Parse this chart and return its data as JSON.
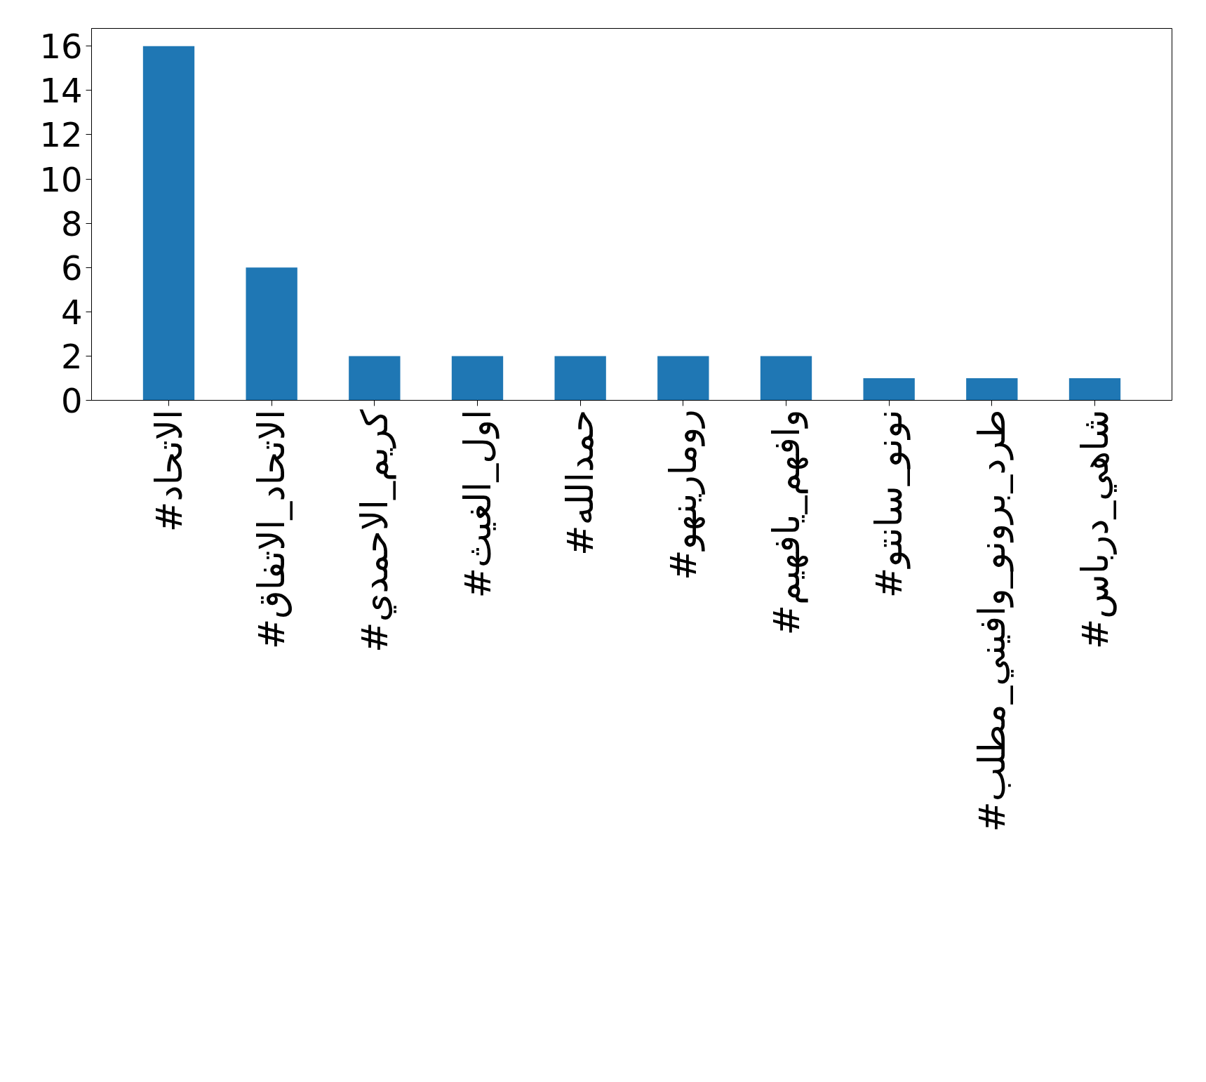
{
  "chart_data": {
    "type": "bar",
    "categories": [
      "#الاتحاد",
      "#الاتحاد_الاتفاق",
      "#كريم_الاحمدي",
      "#اول_الغيث",
      "#حمدالله",
      "#رومارينهو",
      "#وافهم_يافهيم",
      "#نونو_سانتو",
      "#طرد_برونو_وافيني_مطلب",
      "#شاهي_درباس"
    ],
    "values": [
      16,
      6,
      2,
      2,
      2,
      2,
      2,
      1,
      1,
      1
    ],
    "color": "#1f77b4",
    "ylim": [
      0,
      16.8
    ],
    "yticks": [
      0,
      2,
      4,
      6,
      8,
      10,
      12,
      14,
      16
    ],
    "grid": false
  }
}
